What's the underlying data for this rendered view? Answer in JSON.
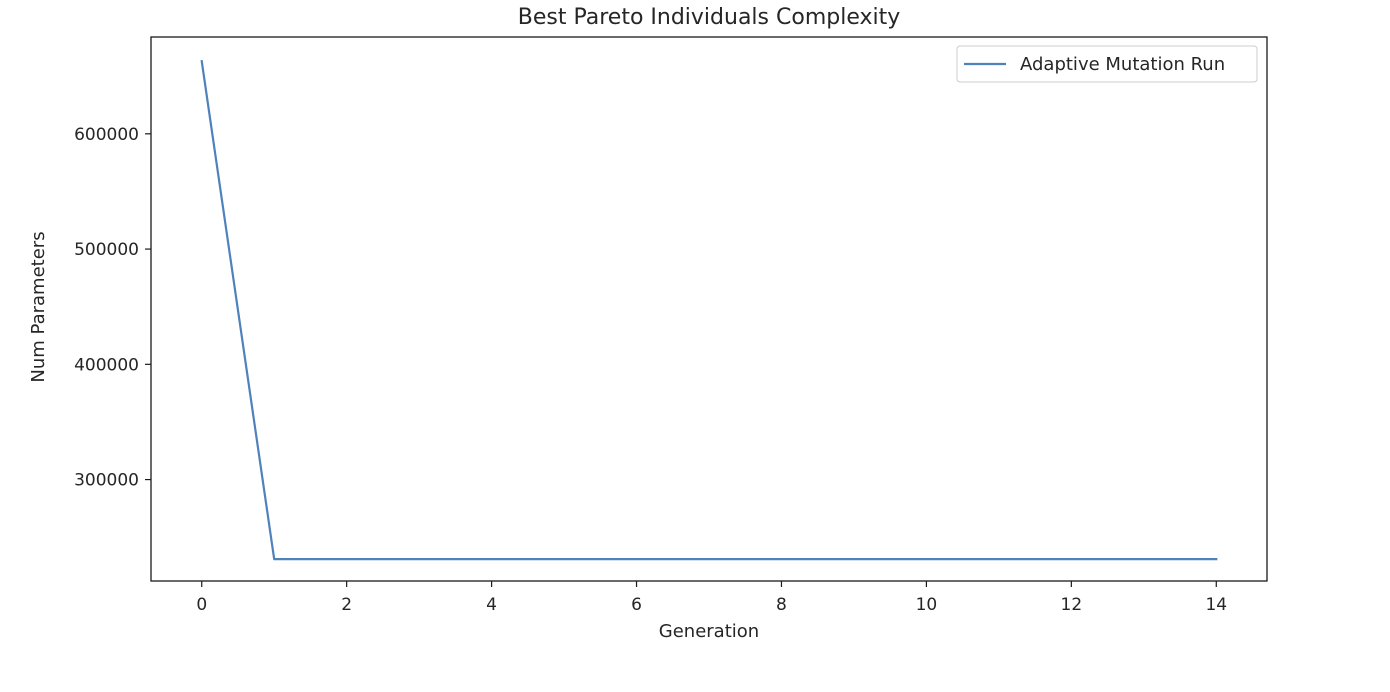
{
  "chart_data": {
    "type": "line",
    "title": "Best Pareto Individuals Complexity",
    "xlabel": "Generation",
    "ylabel": "Num Parameters",
    "xlim": [
      -0.7,
      14.7
    ],
    "ylim": [
      212000,
      684000
    ],
    "x_ticks": [
      0,
      2,
      4,
      6,
      8,
      10,
      12,
      14
    ],
    "y_ticks": [
      300000,
      400000,
      500000,
      600000
    ],
    "grid": false,
    "legend_position": "upper right",
    "series": [
      {
        "name": "Adaptive Mutation Run",
        "color": "#4f81bd",
        "x": [
          0,
          1,
          2,
          3,
          4,
          5,
          6,
          7,
          8,
          9,
          10,
          11,
          12,
          13,
          14
        ],
        "y": [
          663000,
          231000,
          231000,
          231000,
          231000,
          231000,
          231000,
          231000,
          231000,
          231000,
          231000,
          231000,
          231000,
          231000,
          231000
        ]
      }
    ]
  }
}
